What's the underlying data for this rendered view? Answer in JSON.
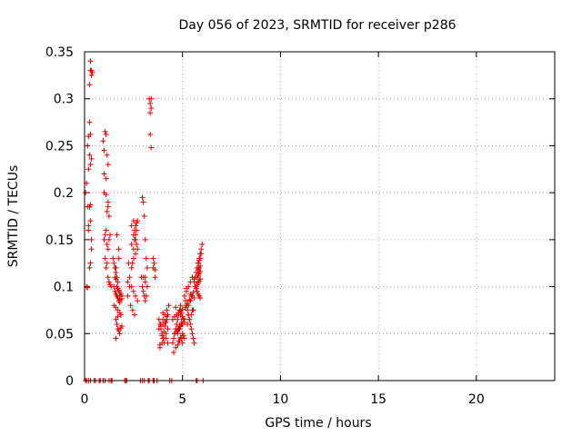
{
  "chart_data": {
    "type": "scatter",
    "title": "Day 056 of 2023, SRMTID for receiver p286",
    "xlabel": "GPS time / hours",
    "ylabel": "SRMTID / TECUs",
    "xlim": [
      0,
      24
    ],
    "ylim": [
      0,
      0.35
    ],
    "xticks": [
      0,
      5,
      10,
      15,
      20
    ],
    "xtick_labels": [
      "0",
      "5",
      "10",
      "15",
      "20"
    ],
    "yticks": [
      0,
      0.05,
      0.1,
      0.15,
      0.2,
      0.25,
      0.3,
      0.35
    ],
    "ytick_labels": [
      "0",
      "0.05",
      "0.1",
      "0.15",
      "0.2",
      "0.25",
      "0.3",
      "0.35"
    ],
    "grid": true,
    "marker": "+",
    "color": "#e00000",
    "series": [
      {
        "name": "SRMTID",
        "x": [
          0.05,
          0.1,
          0.15,
          0.2,
          0.25,
          0.3,
          0.35,
          0.2,
          0.3,
          0.1,
          0.15,
          0.25,
          0.3,
          0.35,
          0.15,
          0.2,
          0.25,
          0.3,
          0.2,
          0.25,
          0.3,
          0.35,
          0.25,
          0.3,
          0.3,
          0.35,
          0.35,
          0.4,
          0.95,
          1.0,
          1.05,
          1.1,
          1.15,
          1.2,
          1.0,
          1.1,
          1.15,
          1.2,
          1.25,
          1.0,
          1.05,
          1.1,
          1.15,
          1.2,
          1.25,
          1.3,
          1.05,
          1.1,
          1.15,
          1.2,
          1.25,
          1.3,
          1.35,
          1.0,
          1.1,
          1.2,
          1.45,
          1.5,
          1.55,
          1.6,
          1.65,
          1.7,
          1.5,
          1.55,
          1.6,
          1.65,
          1.7,
          1.75,
          1.8,
          1.5,
          1.6,
          1.7,
          1.8,
          1.85,
          1.6,
          1.65,
          1.7,
          1.75,
          1.8,
          1.85,
          1.9,
          1.6,
          1.7,
          1.8,
          1.65,
          1.75,
          1.55,
          1.6,
          1.65,
          1.7,
          1.75,
          1.8,
          1.85,
          1.9,
          1.7,
          1.8,
          1.9,
          1.6,
          1.75,
          2.2,
          2.3,
          2.4,
          2.45,
          2.5,
          2.55,
          2.6,
          2.65,
          2.4,
          2.5,
          2.55,
          2.6,
          2.65,
          2.7,
          2.3,
          2.4,
          2.5,
          2.6,
          2.7,
          2.2,
          2.35,
          2.45,
          2.55,
          2.25,
          2.5,
          2.6,
          2.4,
          2.5,
          2.55,
          2.6,
          2.65,
          2.7,
          2.9,
          2.95,
          3.0,
          3.05,
          3.1,
          2.95,
          3.0,
          3.05,
          3.1,
          3.15,
          3.2,
          3.0,
          3.1,
          3.2,
          3.1,
          3.15,
          3.3,
          3.35,
          3.4,
          3.35,
          3.4,
          3.35,
          3.4,
          3.5,
          3.55,
          3.6,
          3.5,
          3.6,
          3.8,
          3.85,
          3.9,
          3.95,
          4.0,
          4.05,
          4.1,
          4.15,
          4.2,
          4.25,
          3.85,
          3.95,
          4.05,
          4.15,
          4.25,
          3.9,
          4.0,
          4.1,
          4.2,
          4.3,
          3.8,
          3.9,
          4.0,
          4.1,
          4.2,
          3.95,
          4.05,
          4.15,
          4.25,
          3.85,
          4.0,
          4.2,
          4.5,
          4.55,
          4.6,
          4.65,
          4.7,
          4.75,
          4.8,
          4.85,
          4.9,
          4.95,
          5.0,
          4.55,
          4.65,
          4.75,
          4.85,
          4.95,
          5.05,
          4.6,
          4.7,
          4.8,
          4.9,
          5.0,
          5.1,
          4.5,
          4.6,
          4.7,
          4.8,
          4.9,
          5.0,
          4.65,
          4.75,
          4.85,
          4.95,
          5.05,
          4.7,
          4.8,
          4.9,
          5.0,
          4.75,
          4.85,
          4.95,
          5.05,
          4.9,
          5.0,
          5.1,
          4.6,
          4.8,
          5.0,
          5.1,
          5.15,
          5.2,
          5.25,
          5.3,
          5.35,
          5.4,
          5.45,
          5.5,
          5.55,
          5.6,
          5.15,
          5.25,
          5.35,
          5.45,
          5.55,
          5.2,
          5.3,
          5.4,
          5.5,
          5.6,
          5.25,
          5.35,
          5.45,
          5.55,
          5.3,
          5.4,
          5.5,
          5.2,
          5.4,
          5.6,
          5.3,
          5.5,
          5.6,
          5.65,
          5.7,
          5.75,
          5.8,
          5.85,
          5.9,
          5.95,
          6.0,
          5.65,
          5.7,
          5.75,
          5.8,
          5.85,
          5.9,
          5.7,
          5.75,
          5.8,
          5.85,
          5.9,
          5.75,
          5.8,
          5.85,
          5.9,
          5.8,
          5.85,
          5.9,
          5.8,
          5.85,
          5.9,
          5.95,
          0.05,
          0.1,
          0.2,
          0.3,
          0.5,
          0.55,
          0.75,
          0.8,
          0.95,
          1.05,
          1.25,
          1.35,
          1.4,
          2.05,
          2.1,
          2.15,
          2.85,
          2.95,
          3.05,
          3.25,
          3.3,
          3.5,
          3.55,
          3.7,
          4.35,
          4.45,
          5.7,
          5.75,
          6.05
        ],
        "y": [
          0.2,
          0.21,
          0.185,
          0.225,
          0.24,
          0.23,
          0.236,
          0.16,
          0.17,
          0.1,
          0.099,
          0.12,
          0.125,
          0.14,
          0.25,
          0.26,
          0.275,
          0.262,
          0.165,
          0.185,
          0.187,
          0.15,
          0.315,
          0.33,
          0.34,
          0.33,
          0.325,
          0.328,
          0.255,
          0.245,
          0.265,
          0.262,
          0.24,
          0.23,
          0.22,
          0.215,
          0.18,
          0.185,
          0.175,
          0.15,
          0.155,
          0.16,
          0.145,
          0.14,
          0.15,
          0.155,
          0.13,
          0.12,
          0.125,
          0.11,
          0.105,
          0.102,
          0.1,
          0.2,
          0.198,
          0.19,
          0.13,
          0.125,
          0.12,
          0.115,
          0.11,
          0.105,
          0.1,
          0.095,
          0.092,
          0.09,
          0.088,
          0.085,
          0.083,
          0.08,
          0.078,
          0.075,
          0.072,
          0.07,
          0.065,
          0.06,
          0.055,
          0.053,
          0.05,
          0.056,
          0.058,
          0.045,
          0.068,
          0.09,
          0.155,
          0.14,
          0.11,
          0.108,
          0.1,
          0.098,
          0.096,
          0.094,
          0.092,
          0.09,
          0.088,
          0.086,
          0.087,
          0.12,
          0.13,
          0.105,
          0.1,
          0.12,
          0.125,
          0.14,
          0.15,
          0.155,
          0.16,
          0.165,
          0.17,
          0.16,
          0.15,
          0.145,
          0.14,
          0.11,
          0.1,
          0.095,
          0.09,
          0.085,
          0.09,
          0.08,
          0.075,
          0.07,
          0.125,
          0.13,
          0.135,
          0.145,
          0.155,
          0.16,
          0.165,
          0.168,
          0.17,
          0.11,
          0.1,
          0.095,
          0.09,
          0.085,
          0.195,
          0.19,
          0.175,
          0.15,
          0.13,
          0.12,
          0.11,
          0.105,
          0.1,
          0.11,
          0.09,
          0.3,
          0.295,
          0.29,
          0.285,
          0.3,
          0.262,
          0.248,
          0.12,
          0.125,
          0.118,
          0.13,
          0.11,
          0.065,
          0.06,
          0.055,
          0.05,
          0.045,
          0.04,
          0.058,
          0.062,
          0.065,
          0.07,
          0.035,
          0.04,
          0.045,
          0.05,
          0.055,
          0.06,
          0.065,
          0.07,
          0.075,
          0.08,
          0.055,
          0.058,
          0.06,
          0.062,
          0.065,
          0.048,
          0.052,
          0.045,
          0.04,
          0.038,
          0.072,
          0.068,
          0.04,
          0.045,
          0.05,
          0.055,
          0.06,
          0.065,
          0.07,
          0.075,
          0.08,
          0.072,
          0.068,
          0.03,
          0.035,
          0.038,
          0.042,
          0.045,
          0.048,
          0.05,
          0.052,
          0.055,
          0.058,
          0.06,
          0.062,
          0.065,
          0.068,
          0.07,
          0.072,
          0.074,
          0.076,
          0.078,
          0.05,
          0.055,
          0.06,
          0.065,
          0.07,
          0.042,
          0.046,
          0.05,
          0.054,
          0.058,
          0.062,
          0.066,
          0.07,
          0.04,
          0.045,
          0.05,
          0.055,
          0.06,
          0.09,
          0.085,
          0.08,
          0.075,
          0.07,
          0.065,
          0.06,
          0.055,
          0.05,
          0.045,
          0.04,
          0.078,
          0.082,
          0.086,
          0.09,
          0.094,
          0.098,
          0.1,
          0.105,
          0.11,
          0.108,
          0.06,
          0.065,
          0.07,
          0.075,
          0.08,
          0.085,
          0.09,
          0.095,
          0.092,
          0.088,
          0.07,
          0.075,
          0.105,
          0.11,
          0.115,
          0.12,
          0.125,
          0.13,
          0.135,
          0.14,
          0.145,
          0.1,
          0.098,
          0.095,
          0.092,
          0.09,
          0.088,
          0.1,
          0.102,
          0.104,
          0.106,
          0.108,
          0.11,
          0.112,
          0.114,
          0.116,
          0.118,
          0.12,
          0.122,
          0.125,
          0.128,
          0.13,
          0.135,
          0,
          0,
          0,
          0,
          0,
          0,
          0,
          0,
          0,
          0,
          0,
          0,
          0,
          0,
          0,
          0,
          0,
          0,
          0,
          0,
          0,
          0,
          0,
          0,
          0,
          0,
          0,
          0,
          0
        ]
      }
    ]
  }
}
